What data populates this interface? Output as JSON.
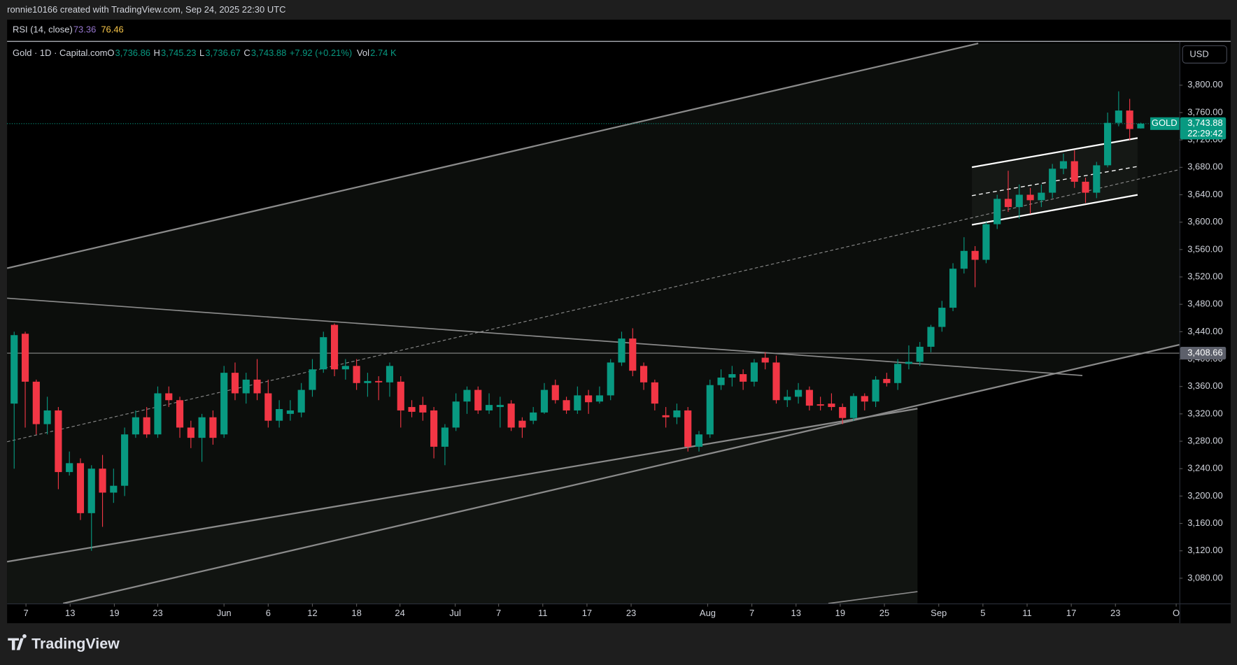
{
  "header": {
    "credit": "ronnie10166 created with TradingView.com, Sep 24, 2025 22:30 UTC",
    "rsi": {
      "name": "RSI (14, close)",
      "values": [
        "73.36",
        "76.46"
      ]
    },
    "symbol": "Gold · 1D · Capital.com",
    "fields": [
      {
        "label": "O",
        "value": "3,736.86"
      },
      {
        "label": "H",
        "value": "3,745.23"
      },
      {
        "label": "L",
        "value": "3,736.67"
      },
      {
        "label": "C",
        "value": "3,743.88"
      }
    ],
    "change": "+7.92 (+0.21%)",
    "vol_label": "Vol",
    "vol_value": "2.74 K",
    "currency": "USD",
    "brand": "TradingView"
  },
  "chart_data": {
    "type": "candlestick",
    "up_color": "#089981",
    "down_color": "#f23645",
    "open": [
      3335,
      3437,
      3367,
      3305,
      3325,
      3235,
      3248,
      3175,
      3240,
      3205,
      3215,
      3290,
      3315,
      3290,
      3350,
      3340,
      3300,
      3285,
      3315,
      3290,
      3380,
      3350,
      3370,
      3350,
      3310,
      3320,
      3322,
      3355,
      3385,
      3450,
      3385,
      3390,
      3365,
      3368,
      3366,
      3367,
      3330,
      3333,
      3325,
      3272,
      3300,
      3338,
      3355,
      3325,
      3330,
      3335,
      3310,
      3310,
      3322,
      3362,
      3340,
      3325,
      3347,
      3338,
      3347,
      3395,
      3430,
      3390,
      3366,
      3318,
      3315,
      3325,
      3272,
      3290,
      3362,
      3373,
      3378,
      3367,
      3402,
      3395,
      3340,
      3345,
      3355,
      3334,
      3335,
      3330,
      3314,
      3346,
      3338,
      3371,
      3365,
      3393,
      3396,
      3418,
      3447,
      3475,
      3532,
      3558,
      3545,
      3597,
      3634,
      3622,
      3640,
      3632,
      3643,
      3678,
      3689,
      3659,
      3643,
      3683,
      3745,
      3763,
      3736.86
    ],
    "high": [
      3440,
      3440,
      3370,
      3345,
      3330,
      3265,
      3255,
      3245,
      3260,
      3240,
      3300,
      3325,
      3330,
      3360,
      3360,
      3345,
      3310,
      3320,
      3325,
      3390,
      3395,
      3380,
      3400,
      3370,
      3340,
      3340,
      3365,
      3400,
      3440,
      3452,
      3400,
      3400,
      3380,
      3375,
      3395,
      3375,
      3340,
      3345,
      3330,
      3305,
      3350,
      3360,
      3360,
      3350,
      3345,
      3340,
      3315,
      3330,
      3365,
      3370,
      3345,
      3360,
      3355,
      3360,
      3400,
      3440,
      3445,
      3395,
      3370,
      3330,
      3335,
      3330,
      3295,
      3370,
      3385,
      3390,
      3385,
      3400,
      3410,
      3405,
      3355,
      3365,
      3360,
      3345,
      3350,
      3335,
      3350,
      3350,
      3375,
      3380,
      3400,
      3420,
      3425,
      3450,
      3485,
      3540,
      3578,
      3565,
      3600,
      3640,
      3675,
      3655,
      3650,
      3655,
      3685,
      3700,
      3705,
      3665,
      3688,
      3760,
      3791,
      3780,
      3745.23
    ],
    "low": [
      3240,
      3300,
      3290,
      3290,
      3210,
      3230,
      3165,
      3120,
      3155,
      3190,
      3200,
      3285,
      3285,
      3285,
      3330,
      3285,
      3270,
      3250,
      3275,
      3285,
      3340,
      3335,
      3340,
      3300,
      3300,
      3310,
      3315,
      3345,
      3380,
      3375,
      3370,
      3355,
      3345,
      3340,
      3345,
      3300,
      3315,
      3310,
      3255,
      3245,
      3295,
      3320,
      3320,
      3320,
      3300,
      3295,
      3285,
      3305,
      3320,
      3335,
      3320,
      3320,
      3320,
      3335,
      3340,
      3390,
      3375,
      3355,
      3325,
      3300,
      3305,
      3265,
      3265,
      3285,
      3355,
      3360,
      3355,
      3360,
      3385,
      3335,
      3330,
      3335,
      3325,
      3325,
      3325,
      3305,
      3310,
      3325,
      3330,
      3360,
      3355,
      3385,
      3390,
      3410,
      3440,
      3470,
      3525,
      3505,
      3540,
      3590,
      3615,
      3605,
      3612,
      3622,
      3635,
      3670,
      3650,
      3628,
      3635,
      3680,
      3740,
      3720,
      3736.67
    ],
    "close": [
      3435,
      3367,
      3305,
      3325,
      3235,
      3248,
      3175,
      3240,
      3205,
      3215,
      3290,
      3315,
      3290,
      3350,
      3340,
      3300,
      3285,
      3315,
      3285,
      3380,
      3350,
      3370,
      3350,
      3310,
      3327,
      3325,
      3355,
      3385,
      3432,
      3385,
      3390,
      3365,
      3368,
      3366,
      3390,
      3325,
      3323,
      3322,
      3272,
      3300,
      3338,
      3355,
      3325,
      3333,
      3333,
      3300,
      3300,
      3322,
      3355,
      3340,
      3325,
      3347,
      3337,
      3347,
      3395,
      3430,
      3383,
      3366,
      3335,
      3315,
      3325,
      3272,
      3290,
      3362,
      3373,
      3378,
      3367,
      3395,
      3395,
      3340,
      3345,
      3355,
      3332,
      3332,
      3330,
      3314,
      3346,
      3338,
      3370,
      3365,
      3393,
      3396,
      3418,
      3447,
      3475,
      3532,
      3558,
      3545,
      3597,
      3634,
      3622,
      3640,
      3632,
      3643,
      3678,
      3689,
      3659,
      3643,
      3683,
      3745,
      3763,
      3736,
      3743.88
    ],
    "xlim": [
      -0.64,
      105.5
    ],
    "xticks": [
      {
        "value": 1.07,
        "label": "7"
      },
      {
        "value": 5.07,
        "label": "13"
      },
      {
        "value": 9.07,
        "label": "19"
      },
      {
        "value": 13,
        "label": "23"
      },
      {
        "value": 19,
        "label": "Jun"
      },
      {
        "value": 23,
        "label": "6"
      },
      {
        "value": 27,
        "label": "12"
      },
      {
        "value": 31,
        "label": "18"
      },
      {
        "value": 34.93,
        "label": "24"
      },
      {
        "value": 39.93,
        "label": "Jul"
      },
      {
        "value": 43.86,
        "label": "7"
      },
      {
        "value": 47.86,
        "label": "11"
      },
      {
        "value": 51.86,
        "label": "17"
      },
      {
        "value": 55.86,
        "label": "23"
      },
      {
        "value": 62.79,
        "label": "Aug"
      },
      {
        "value": 66.79,
        "label": "7"
      },
      {
        "value": 70.79,
        "label": "13"
      },
      {
        "value": 74.79,
        "label": "19"
      },
      {
        "value": 78.79,
        "label": "25"
      },
      {
        "value": 83.71,
        "label": "Sep"
      },
      {
        "value": 87.71,
        "label": "5"
      },
      {
        "value": 91.71,
        "label": "11"
      },
      {
        "value": 95.71,
        "label": "17"
      },
      {
        "value": 99.71,
        "label": "23"
      },
      {
        "value": 105.21,
        "label": "O"
      }
    ],
    "ylim": [
      3043.1,
      3862.2
    ],
    "yticks": [
      {
        "value": 3080,
        "label": "3,080.00"
      },
      {
        "value": 3120,
        "label": "3,120.00"
      },
      {
        "value": 3160,
        "label": "3,160.00"
      },
      {
        "value": 3200,
        "label": "3,200.00"
      },
      {
        "value": 3240,
        "label": "3,240.00"
      },
      {
        "value": 3280,
        "label": "3,280.00"
      },
      {
        "value": 3320,
        "label": "3,320.00"
      },
      {
        "value": 3360,
        "label": "3,360.00"
      },
      {
        "value": 3400,
        "label": "3,400.00"
      },
      {
        "value": 3440,
        "label": "3,440.00"
      },
      {
        "value": 3480,
        "label": "3,480.00"
      },
      {
        "value": 3520,
        "label": "3,520.00"
      },
      {
        "value": 3560,
        "label": "3,560.00"
      },
      {
        "value": 3600,
        "label": "3,600.00"
      },
      {
        "value": 3640,
        "label": "3,640.00"
      },
      {
        "value": 3680,
        "label": "3,680.00"
      },
      {
        "value": 3720,
        "label": "3,720.00"
      },
      {
        "value": 3760,
        "label": "3,760.00"
      },
      {
        "value": 3800,
        "label": "3,800.00"
      }
    ],
    "level": {
      "value": 3408.66,
      "label": "3,408.66"
    },
    "last_price": {
      "value": 3743.88,
      "label": "3,743.88",
      "name": "GOLD",
      "countdown": "22:29:42"
    }
  }
}
